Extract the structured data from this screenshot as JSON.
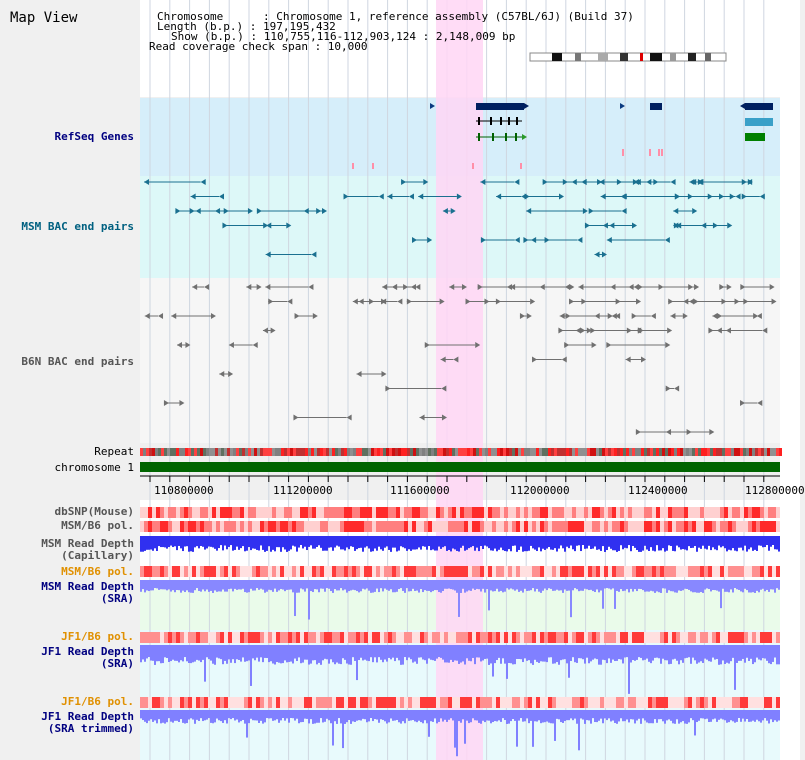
{
  "window": {
    "title": "Map View"
  },
  "header": {
    "chromosome_line": "Chromosome      : Chromosome 1, reference assembly (C57BL/6J) (Build 37)",
    "length_line": "Length (b.p.) : 197,195,432",
    "show_line": "Show (b.p.) : 110,755,116-112,903,124 : 2,148,009 bp",
    "coverage_line": "Read coverage check span : 10,000"
  },
  "tracks": {
    "refseq": "RefSeq Genes",
    "msm_bac": "MSM BAC end pairs",
    "b6n_bac": "B6N BAC end pairs",
    "repeat": "Repeat",
    "chromosome": "chromosome 1",
    "dbsnp": "dbSNP(Mouse)",
    "msm_b6_pol": "MSM/B6 pol.",
    "msm_depth_cap_1": "MSM Read Depth",
    "msm_depth_cap_2": "(Capillary)",
    "msm_b6_pol_2": "MSM/B6 pol.",
    "msm_depth_sra_1": "MSM Read Depth",
    "msm_depth_sra_2": "(SRA)",
    "jf1_b6_pol": "JF1/B6 pol.",
    "jf1_depth_sra_1": "JF1 Read Depth",
    "jf1_depth_sra_2": "(SRA)",
    "jf1_b6_pol_2": "JF1/B6 pol.",
    "jf1_depth_trim_1": "JF1 Read Depth",
    "jf1_depth_trim_2": "(SRA trimmed)"
  },
  "axis": {
    "ticks": [
      "110800000",
      "111200000",
      "111600000",
      "112000000",
      "112400000",
      "112800000"
    ]
  },
  "colors": {
    "refseq_bg": "#d6eefa",
    "msm_bg": "#ddf8f8",
    "b6n_bg": "#f6f6f6",
    "highlight": "#ffd6f4",
    "label_navy": "#000080",
    "label_orange": "#e09000",
    "label_teal": "#006080",
    "depth_blue": "#3333ff",
    "depth_light": "#9999ff"
  }
}
